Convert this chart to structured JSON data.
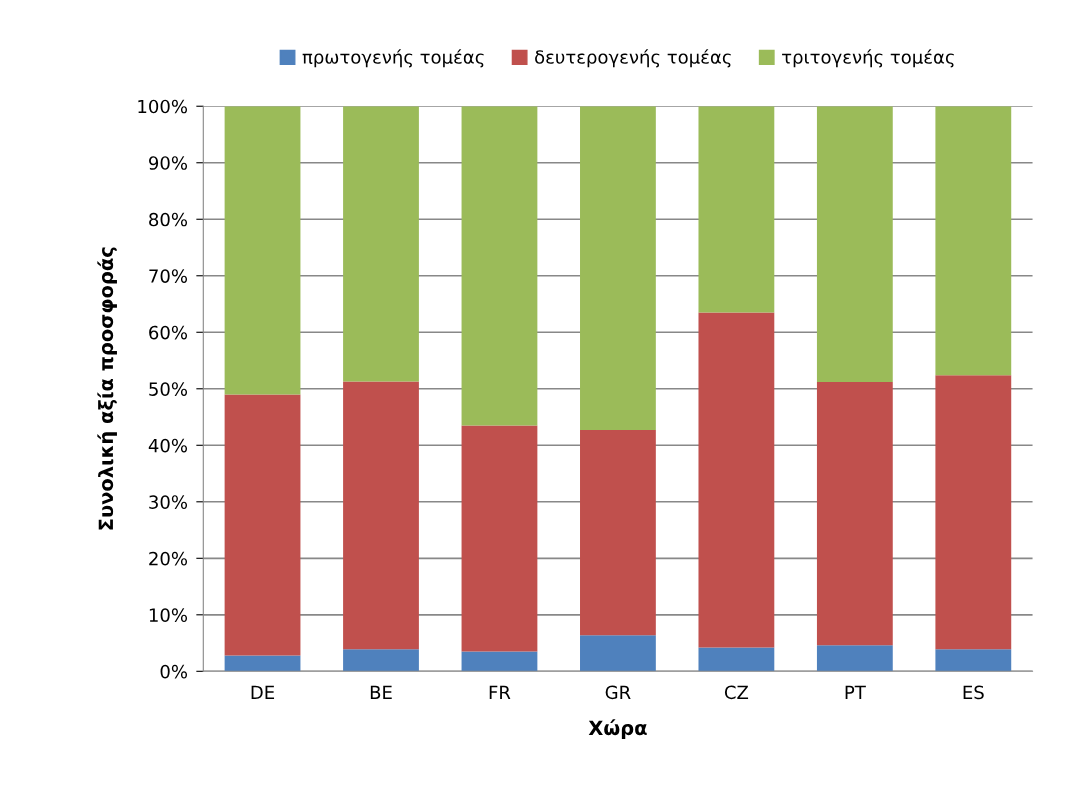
{
  "chart_data": {
    "type": "bar",
    "stacked": true,
    "xlabel": "Χώρα",
    "ylabel": "Συνολική αξία προσφοράς",
    "categories": [
      "DE",
      "BE",
      "FR",
      "GR",
      "CZ",
      "PT",
      "ES"
    ],
    "series": [
      {
        "name": "πρωτογενής τομέας",
        "color": "#4f81bd",
        "values": [
          2.8,
          3.9,
          3.5,
          6.4,
          4.2,
          4.6,
          3.9
        ]
      },
      {
        "name": "δευτερογενής τομέας",
        "color": "#c0504d",
        "values": [
          46.2,
          47.4,
          40.0,
          36.3,
          59.3,
          46.6,
          48.5
        ]
      },
      {
        "name": "τριτογενής τομέας",
        "color": "#9bbb59",
        "values": [
          51.0,
          48.7,
          56.5,
          57.3,
          36.5,
          48.8,
          47.6
        ]
      }
    ],
    "ylim": [
      0,
      100
    ],
    "yticks": [
      {
        "value": 0,
        "label": "0%"
      },
      {
        "value": 10,
        "label": "10%"
      },
      {
        "value": 20,
        "label": "20%"
      },
      {
        "value": 30,
        "label": "30%"
      },
      {
        "value": 40,
        "label": "40%"
      },
      {
        "value": 50,
        "label": "50%"
      },
      {
        "value": 60,
        "label": "60%"
      },
      {
        "value": 70,
        "label": "70%"
      },
      {
        "value": 80,
        "label": "80%"
      },
      {
        "value": 90,
        "label": "90%"
      },
      {
        "value": 100,
        "label": "100%"
      }
    ],
    "grid": "y",
    "legend": "top"
  }
}
